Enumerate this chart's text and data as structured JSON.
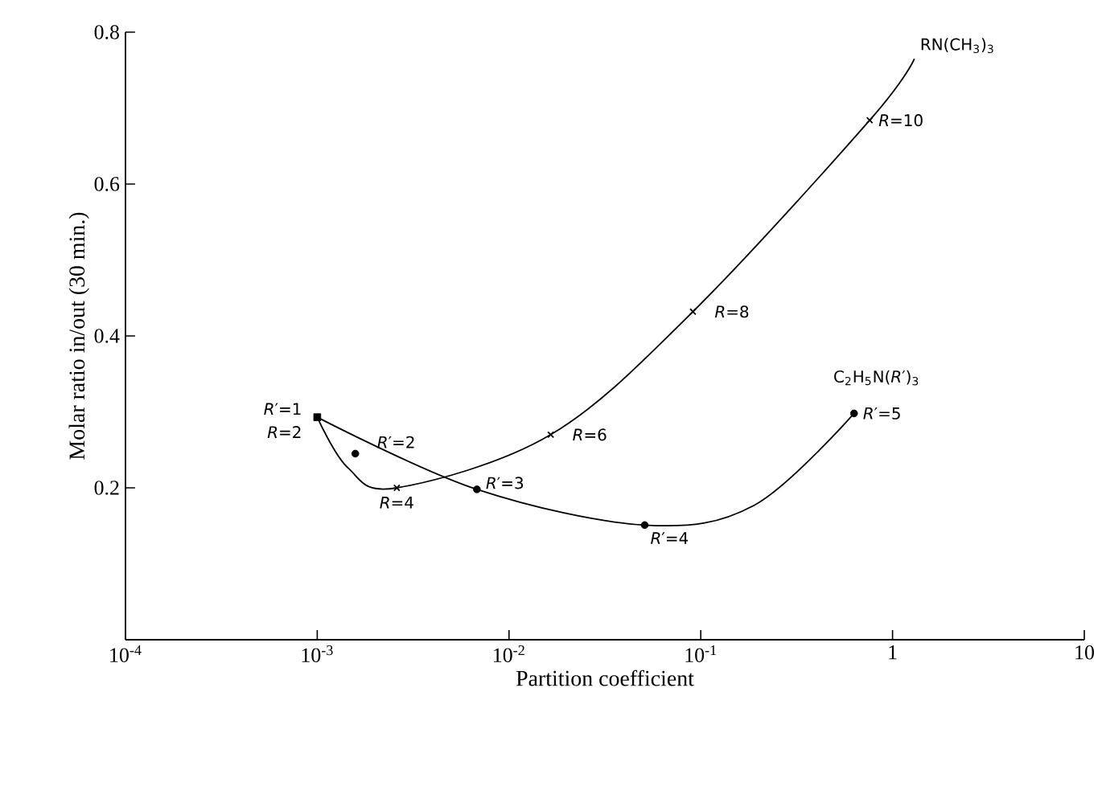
{
  "chart_data": {
    "type": "line",
    "xlabel": "Partition coefficient",
    "ylabel": "Molar ratio in/out (30 min.)",
    "log": "x",
    "xlim": [
      0.0001,
      10
    ],
    "ylim": [
      0,
      0.8
    ],
    "xticks": [
      {
        "value": 0.0001,
        "label": "10$^{-4}$"
      },
      {
        "value": 0.001,
        "label": "10$^{-3}$"
      },
      {
        "value": 0.01,
        "label": "10$^{-2}$"
      },
      {
        "value": 0.1,
        "label": "10$^{-1}$"
      },
      1,
      10
    ],
    "yticks": [
      0.2,
      0.4,
      0.6,
      0.8
    ],
    "series": [
      {
        "name": "RN(CH$_{3}$)$_{3}$",
        "type": "line",
        "marker": "none",
        "color": "#000000",
        "x": [
          0.001,
          0.00145,
          0.0026,
          0.0165,
          0.091,
          0.76,
          1.3
        ],
        "values": [
          0.293,
          0.226,
          0.2,
          0.27,
          0.432,
          0.684,
          0.765
        ]
      },
      {
        "name": "C$_{2}$H$_{5}$N(*R*′)$_{3}$",
        "type": "line",
        "marker": "none",
        "color": "#000000",
        "x": [
          0.001,
          0.0068,
          0.051,
          0.19,
          0.63
        ],
        "values": [
          0.293,
          0.198,
          0.151,
          0.177,
          0.298
        ]
      },
      {
        "type": "scatter",
        "marker": "cross",
        "color": "#000000",
        "x": [
          0.0026,
          0.0165,
          0.091,
          0.76
        ],
        "values": [
          0.2,
          0.27,
          0.432,
          0.684
        ]
      },
      {
        "type": "scatter",
        "marker": "circle",
        "color": "#000000",
        "x": [
          0.00158,
          0.0068,
          0.051,
          0.63
        ],
        "values": [
          0.245,
          0.198,
          0.151,
          0.298
        ]
      },
      {
        "type": "scatter",
        "marker": "square",
        "color": "#000000",
        "x": [
          0.001
        ],
        "values": [
          0.293
        ]
      }
    ],
    "annotations": [
      {
        "text": "*R*′=1",
        "x": 0.001,
        "y": 0.293
      },
      {
        "text": "*R*=2",
        "x": 0.001,
        "y": 0.293
      },
      {
        "text": "*R*′=2",
        "x": 0.00158,
        "y": 0.245
      },
      {
        "text": "*R*=4",
        "x": 0.0026,
        "y": 0.2
      },
      {
        "text": "*R*′=3",
        "x": 0.0068,
        "y": 0.198
      },
      {
        "text": "*R*=6",
        "x": 0.0165,
        "y": 0.27
      },
      {
        "text": "*R*′=4",
        "x": 0.051,
        "y": 0.151
      },
      {
        "text": "*R*=8",
        "x": 0.091,
        "y": 0.432
      },
      {
        "text": "*R*′=5",
        "x": 0.63,
        "y": 0.298
      },
      {
        "text": "*R*=10",
        "x": 0.76,
        "y": 0.684
      }
    ]
  }
}
